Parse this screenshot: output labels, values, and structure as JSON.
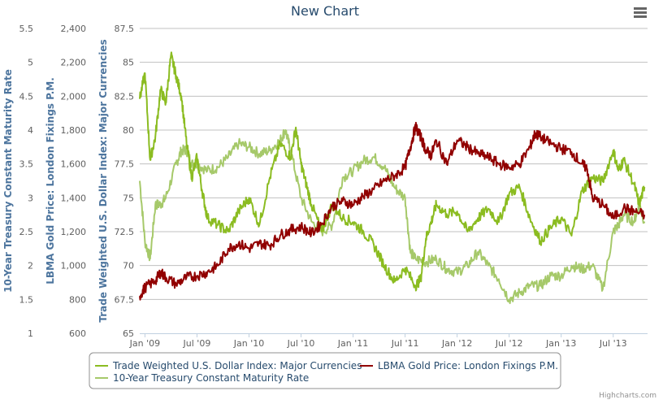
{
  "chart_data": {
    "type": "line",
    "title": "New Chart",
    "xlabel": "",
    "x_range": [
      "2008-12",
      "2013-11"
    ],
    "x_tick_labels": [
      "Jan '09",
      "Jul '09",
      "Jan '10",
      "Jul '10",
      "Jan '11",
      "Jul '11",
      "Jan '12",
      "Jul '12",
      "Jan '13",
      "Jul '13"
    ],
    "x_tick_dates": [
      2009.0,
      2009.5,
      2010.0,
      2010.5,
      2011.0,
      2011.5,
      2012.0,
      2012.5,
      2013.0,
      2013.5
    ],
    "x_min": 2008.95,
    "x_max": 2013.83,
    "grid": true,
    "legend_position": "bottom-center",
    "y_axes": [
      {
        "id": "dollar",
        "title": "Trade Weighted U.S. Dollar Index: Major Currencies",
        "ylim": [
          65,
          87.5
        ],
        "ticks": [
          65,
          67.5,
          70,
          72.5,
          75,
          77.5,
          80,
          82.5,
          85,
          87.5
        ],
        "tick_labels": [
          "65",
          "67.5",
          "70",
          "72.5",
          "75",
          "77.5",
          "80",
          "82.5",
          "85",
          "87.5"
        ]
      },
      {
        "id": "gold",
        "title": "LBMA Gold Price: London Fixings P.M.",
        "ylim": [
          600,
          2400
        ],
        "ticks": [
          600,
          800,
          1000,
          1200,
          1400,
          1600,
          1800,
          2000,
          2200,
          2400
        ],
        "tick_labels": [
          "600",
          "800",
          "1,000",
          "1,200",
          "1,400",
          "1,600",
          "1,800",
          "2,000",
          "2,200",
          "2,400"
        ]
      },
      {
        "id": "treasury",
        "title": "10-Year Treasury Constant Maturity Rate",
        "ylim": [
          1,
          5.5
        ],
        "ticks": [
          1,
          1.5,
          2,
          2.5,
          3,
          3.5,
          4,
          4.5,
          5,
          5.5
        ],
        "tick_labels": [
          "1",
          "1.5",
          "2",
          "2.5",
          "3",
          "3.5",
          "4",
          "4.5",
          "5",
          "5.5"
        ]
      }
    ],
    "series": [
      {
        "name": "Trade Weighted U.S. Dollar Index: Major Currencies",
        "axis": "dollar",
        "color": "#8bbc21",
        "x": [
          2008.95,
          2009.0,
          2009.05,
          2009.1,
          2009.15,
          2009.2,
          2009.25,
          2009.3,
          2009.35,
          2009.4,
          2009.45,
          2009.5,
          2009.55,
          2009.6,
          2009.7,
          2009.8,
          2009.9,
          2010.0,
          2010.1,
          2010.2,
          2010.3,
          2010.4,
          2010.45,
          2010.5,
          2010.55,
          2010.6,
          2010.7,
          2010.8,
          2010.9,
          2011.0,
          2011.1,
          2011.2,
          2011.3,
          2011.4,
          2011.5,
          2011.6,
          2011.65,
          2011.7,
          2011.75,
          2011.8,
          2011.9,
          2012.0,
          2012.1,
          2012.2,
          2012.3,
          2012.4,
          2012.5,
          2012.6,
          2012.7,
          2012.8,
          2012.9,
          2013.0,
          2013.1,
          2013.2,
          2013.3,
          2013.4,
          2013.5,
          2013.55,
          2013.6,
          2013.7,
          2013.75,
          2013.8
        ],
        "values": [
          82.3,
          84.2,
          77.8,
          79.5,
          83.0,
          82.0,
          85.5,
          84.0,
          82.5,
          79.0,
          76.5,
          78.0,
          75.5,
          73.5,
          73.0,
          72.5,
          74.0,
          75.0,
          73.0,
          76.5,
          79.0,
          78.0,
          80.2,
          77.5,
          76.0,
          74.5,
          72.5,
          74.5,
          73.5,
          73.2,
          72.5,
          71.5,
          70.0,
          68.8,
          69.8,
          68.5,
          69.0,
          72.0,
          73.2,
          74.5,
          73.8,
          74.0,
          72.5,
          73.5,
          74.2,
          73.2,
          75.3,
          75.8,
          73.5,
          71.8,
          72.8,
          73.5,
          72.2,
          75.5,
          76.5,
          76.2,
          78.5,
          77.0,
          77.8,
          76.0,
          74.5,
          75.8
        ]
      },
      {
        "name": "LBMA Gold Price: London Fixings P.M.",
        "axis": "gold",
        "color": "#910000",
        "x": [
          2008.95,
          2009.0,
          2009.1,
          2009.15,
          2009.2,
          2009.3,
          2009.4,
          2009.5,
          2009.6,
          2009.7,
          2009.8,
          2009.9,
          2010.0,
          2010.1,
          2010.2,
          2010.3,
          2010.4,
          2010.5,
          2010.6,
          2010.7,
          2010.8,
          2010.9,
          2011.0,
          2011.1,
          2011.2,
          2011.3,
          2011.4,
          2011.5,
          2011.55,
          2011.6,
          2011.65,
          2011.7,
          2011.75,
          2011.8,
          2011.9,
          2012.0,
          2012.1,
          2012.2,
          2012.3,
          2012.4,
          2012.5,
          2012.6,
          2012.7,
          2012.75,
          2012.8,
          2012.9,
          2013.0,
          2013.1,
          2013.2,
          2013.25,
          2013.3,
          2013.4,
          2013.5,
          2013.6,
          2013.7,
          2013.8
        ],
        "values": [
          820,
          870,
          910,
          960,
          930,
          890,
          930,
          940,
          960,
          1000,
          1100,
          1130,
          1100,
          1130,
          1120,
          1180,
          1210,
          1230,
          1190,
          1250,
          1350,
          1380,
          1360,
          1410,
          1450,
          1500,
          1530,
          1580,
          1700,
          1820,
          1760,
          1680,
          1650,
          1740,
          1600,
          1740,
          1700,
          1660,
          1640,
          1600,
          1580,
          1600,
          1700,
          1780,
          1760,
          1720,
          1690,
          1670,
          1600,
          1570,
          1400,
          1360,
          1280,
          1340,
          1320,
          1300
        ]
      },
      {
        "name": "10-Year Treasury Constant Maturity Rate",
        "axis": "treasury",
        "color": "#a6c96a",
        "x": [
          2008.95,
          2009.0,
          2009.05,
          2009.1,
          2009.15,
          2009.2,
          2009.3,
          2009.35,
          2009.4,
          2009.45,
          2009.5,
          2009.6,
          2009.7,
          2009.8,
          2009.9,
          2010.0,
          2010.1,
          2010.2,
          2010.3,
          2010.35,
          2010.4,
          2010.5,
          2010.6,
          2010.7,
          2010.8,
          2010.9,
          2011.0,
          2011.1,
          2011.2,
          2011.3,
          2011.4,
          2011.5,
          2011.55,
          2011.6,
          2011.7,
          2011.8,
          2011.9,
          2012.0,
          2012.1,
          2012.2,
          2012.3,
          2012.4,
          2012.5,
          2012.6,
          2012.7,
          2012.8,
          2012.9,
          2013.0,
          2013.1,
          2013.2,
          2013.3,
          2013.4,
          2013.5,
          2013.55,
          2013.6,
          2013.7,
          2013.75,
          2013.8
        ],
        "values": [
          3.25,
          2.35,
          2.1,
          2.9,
          2.9,
          3.0,
          3.5,
          3.7,
          3.7,
          3.5,
          3.5,
          3.4,
          3.45,
          3.6,
          3.8,
          3.75,
          3.65,
          3.7,
          3.85,
          4.0,
          3.7,
          3.0,
          2.65,
          2.5,
          2.6,
          3.3,
          3.4,
          3.55,
          3.6,
          3.45,
          3.15,
          3.0,
          2.2,
          2.1,
          2.05,
          2.1,
          1.95,
          1.9,
          2.0,
          2.2,
          2.0,
          1.8,
          1.5,
          1.6,
          1.7,
          1.7,
          1.85,
          1.85,
          2.0,
          1.95,
          2.0,
          1.65,
          2.5,
          2.6,
          2.75,
          2.65,
          2.9,
          2.65
        ]
      }
    ]
  },
  "header": {
    "title": "New Chart",
    "menu_icon": "hamburger-menu-icon"
  },
  "legend": {
    "items": [
      {
        "label": "Trade Weighted U.S. Dollar Index: Major Currencies",
        "color": "#8bbc21"
      },
      {
        "label": "LBMA Gold Price: London Fixings P.M.",
        "color": "#910000"
      },
      {
        "label": "10-Year Treasury Constant Maturity Rate",
        "color": "#a6c96a"
      }
    ]
  },
  "credits": "Highcharts.com"
}
